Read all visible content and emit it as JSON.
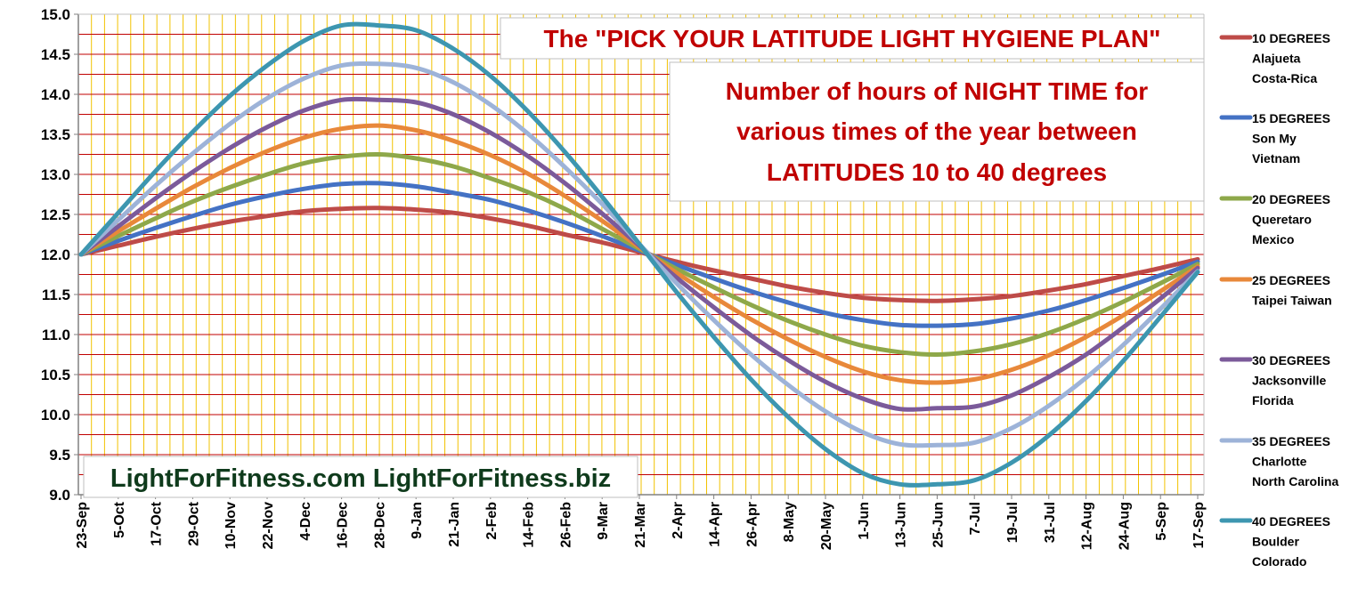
{
  "chart_data": {
    "type": "line",
    "title": "The \"PICK YOUR LATITUDE LIGHT HYGIENE PLAN\"",
    "subtitle_lines": [
      "Number of  hours of NIGHT TIME for",
      "various times of the year between",
      "LATITUDES  10 to 40 degrees"
    ],
    "watermark": "LightForFitness.com LightForFitness.biz",
    "xlabel": "",
    "ylabel": "",
    "ylim": [
      9.0,
      15.0
    ],
    "yticks": [
      "15.0",
      "14.5",
      "14.0",
      "13.5",
      "13.0",
      "12.5",
      "12.0",
      "11.5",
      "11.0",
      "10.5",
      "10.0",
      "9.5",
      "9.0"
    ],
    "ytick_values": [
      15.0,
      14.5,
      14.0,
      13.5,
      13.0,
      12.5,
      12.0,
      11.5,
      11.0,
      10.5,
      10.0,
      9.5,
      9.0
    ],
    "categories": [
      "23-Sep",
      "5-Oct",
      "17-Oct",
      "29-Oct",
      "10-Nov",
      "22-Nov",
      "4-Dec",
      "16-Dec",
      "28-Dec",
      "9-Jan",
      "21-Jan",
      "2-Feb",
      "14-Feb",
      "26-Feb",
      "9-Mar",
      "21-Mar",
      "2-Apr",
      "14-Apr",
      "26-Apr",
      "8-May",
      "20-May",
      "1-Jun",
      "13-Jun",
      "25-Jun",
      "7-Jul",
      "19-Jul",
      "31-Jul",
      "12-Aug",
      "24-Aug",
      "5-Sep",
      "17-Sep"
    ],
    "legend_position": "right",
    "grid": true,
    "series": [
      {
        "name": "10 DEGREES",
        "legend_lines": [
          "10 DEGREES",
          "Alajueta",
          "Costa-Rica"
        ],
        "color": "#be4b48",
        "values": [
          12.0,
          12.11,
          12.22,
          12.32,
          12.41,
          12.48,
          12.54,
          12.57,
          12.58,
          12.56,
          12.52,
          12.45,
          12.36,
          12.25,
          12.15,
          12.03,
          11.91,
          11.8,
          11.7,
          11.6,
          11.52,
          11.46,
          11.43,
          11.42,
          11.44,
          11.48,
          11.55,
          11.63,
          11.73,
          11.83,
          11.94
        ]
      },
      {
        "name": "15 DEGREES",
        "legend_lines": [
          "15 DEGREES",
          "Son My",
          "Vietnam"
        ],
        "color": "#4472c4",
        "values": [
          12.0,
          12.17,
          12.33,
          12.48,
          12.62,
          12.73,
          12.82,
          12.88,
          12.89,
          12.85,
          12.77,
          12.68,
          12.55,
          12.4,
          12.23,
          12.05,
          11.87,
          11.7,
          11.54,
          11.4,
          11.27,
          11.18,
          11.12,
          11.11,
          11.13,
          11.2,
          11.3,
          11.43,
          11.58,
          11.74,
          11.91
        ]
      },
      {
        "name": "20 DEGREES",
        "legend_lines": [
          "20 DEGREES",
          "Queretaro",
          "Mexico"
        ],
        "color": "#8ea84a",
        "values": [
          12.0,
          12.23,
          12.45,
          12.66,
          12.84,
          13.0,
          13.14,
          13.22,
          13.25,
          13.2,
          13.1,
          12.95,
          12.78,
          12.57,
          12.32,
          12.07,
          11.82,
          11.59,
          11.37,
          11.17,
          11.0,
          10.86,
          10.78,
          10.75,
          10.79,
          10.88,
          11.02,
          11.2,
          11.41,
          11.64,
          11.88
        ]
      },
      {
        "name": "25 DEGREES",
        "legend_lines": [
          "25 DEGREES",
          "Taipei Taiwan"
        ],
        "color": "#e8883a",
        "values": [
          12.0,
          12.29,
          12.57,
          12.84,
          13.08,
          13.29,
          13.46,
          13.57,
          13.61,
          13.55,
          13.42,
          13.24,
          13.01,
          12.73,
          12.42,
          12.09,
          11.77,
          11.47,
          11.19,
          10.94,
          10.72,
          10.54,
          10.43,
          10.4,
          10.44,
          10.56,
          10.74,
          10.97,
          11.24,
          11.54,
          11.85
        ]
      },
      {
        "name": "30 DEGREES",
        "legend_lines": [
          "30 DEGREES",
          "Jacksonville",
          "Florida"
        ],
        "color": "#7b5a9a",
        "values": [
          12.0,
          12.35,
          12.7,
          13.03,
          13.33,
          13.59,
          13.8,
          13.93,
          13.93,
          13.9,
          13.75,
          13.52,
          13.23,
          12.89,
          12.51,
          12.11,
          11.71,
          11.34,
          10.99,
          10.68,
          10.41,
          10.2,
          10.07,
          10.08,
          10.1,
          10.24,
          10.47,
          10.75,
          11.09,
          11.45,
          11.83
        ]
      },
      {
        "name": "35 DEGREES",
        "legend_lines": [
          "35 DEGREES",
          "Charlotte",
          "North Carolina"
        ],
        "color": "#9db3d8",
        "values": [
          12.0,
          12.43,
          12.86,
          13.26,
          13.63,
          13.95,
          14.2,
          14.36,
          14.38,
          14.33,
          14.15,
          13.87,
          13.51,
          13.09,
          12.63,
          12.13,
          11.64,
          11.18,
          10.75,
          10.37,
          10.04,
          9.78,
          9.63,
          9.62,
          9.65,
          9.83,
          10.11,
          10.46,
          10.87,
          11.32,
          11.79
        ]
      },
      {
        "name": "40 DEGREES",
        "legend_lines": [
          "40 DEGREES",
          "Boulder",
          "Colorado"
        ],
        "color": "#3d96b0",
        "values": [
          12.0,
          12.52,
          13.04,
          13.53,
          13.98,
          14.36,
          14.67,
          14.86,
          14.86,
          14.8,
          14.57,
          14.23,
          13.79,
          13.28,
          12.72,
          12.13,
          11.53,
          10.97,
          10.44,
          9.97,
          9.57,
          9.27,
          9.13,
          9.13,
          9.18,
          9.4,
          9.74,
          10.17,
          10.67,
          11.22,
          11.78
        ]
      }
    ]
  }
}
